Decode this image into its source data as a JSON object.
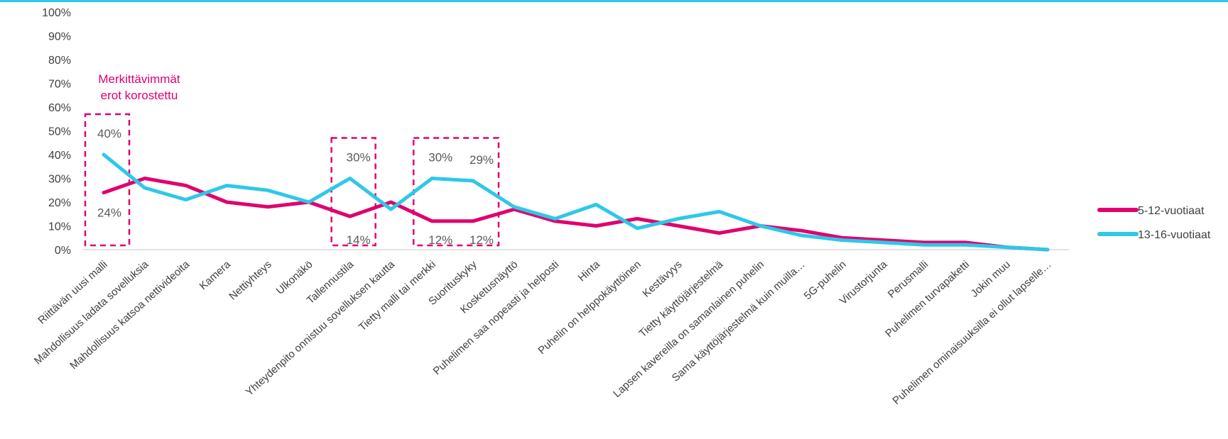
{
  "chart_data": {
    "type": "line",
    "title": "",
    "xlabel": "",
    "ylabel": "",
    "ylim": [
      0,
      100
    ],
    "y_ticks": [
      "0%",
      "10%",
      "20%",
      "30%",
      "40%",
      "50%",
      "60%",
      "70%",
      "80%",
      "90%",
      "100%"
    ],
    "grid": false,
    "legend_position": "right",
    "categories": [
      "Riittävän uusi malli",
      "Mahdollisuus ladata sovelluksia",
      "Mahdollisuus katsoa nettivideoita",
      "Kamera",
      "Nettiyhteys",
      "Ulkonäkö",
      "Tallennustila",
      "Yhteydenpito onnistuu sovelluksen kautta",
      "Tietty malli tai merkki",
      "Suorituskyky",
      "Kosketusnäyttö",
      "Puhelimen saa nopeasti ja helposti",
      "Hinta",
      "Puhelin on helppokäyttöinen",
      "Kestävyys",
      "Tietty käyttöjärjestelmä",
      "Lapsen kavereilla on samanlainen puhelin",
      "Sama käyttöjärjestelmä kuin muilla…",
      "5G-puhelin",
      "Virustorjunta",
      "Perusmalli",
      "Puhelimen turvapaketti",
      "Jokin muu",
      "Puhelimen ominaisuuksilla ei ollut lapselle…"
    ],
    "series": [
      {
        "name": "5-12-vuotiaat",
        "color": "#e0006e",
        "values": [
          24,
          30,
          27,
          20,
          18,
          20,
          14,
          20,
          12,
          12,
          17,
          12,
          10,
          13,
          10,
          7,
          10,
          8,
          5,
          4,
          3,
          3,
          1,
          0
        ]
      },
      {
        "name": "13-16-vuotiaat",
        "color": "#2ec8e8",
        "values": [
          40,
          26,
          21,
          27,
          25,
          20,
          30,
          17,
          30,
          29,
          18,
          13,
          19,
          9,
          13,
          16,
          10,
          6,
          4,
          3,
          2,
          2,
          1,
          0
        ]
      }
    ],
    "data_labels": [
      {
        "category_index": 0,
        "series": "13-16-vuotiaat",
        "text": "40%"
      },
      {
        "category_index": 0,
        "series": "5-12-vuotiaat",
        "text": "24%"
      },
      {
        "category_index": 6,
        "series": "13-16-vuotiaat",
        "text": "30%"
      },
      {
        "category_index": 6,
        "series": "5-12-vuotiaat",
        "text": "14%"
      },
      {
        "category_index": 8,
        "series": "13-16-vuotiaat",
        "text": "30%"
      },
      {
        "category_index": 8,
        "series": "5-12-vuotiaat",
        "text": "12%"
      },
      {
        "category_index": 9,
        "series": "13-16-vuotiaat",
        "text": "29%"
      },
      {
        "category_index": 9,
        "series": "5-12-vuotiaat",
        "text": "12%"
      }
    ],
    "highlight_groups": [
      [
        0
      ],
      [
        6
      ],
      [
        8,
        9
      ]
    ],
    "annotation": {
      "lines": [
        "Merkittävimmät",
        "erot korostettu"
      ],
      "color": "#e0006e"
    }
  }
}
